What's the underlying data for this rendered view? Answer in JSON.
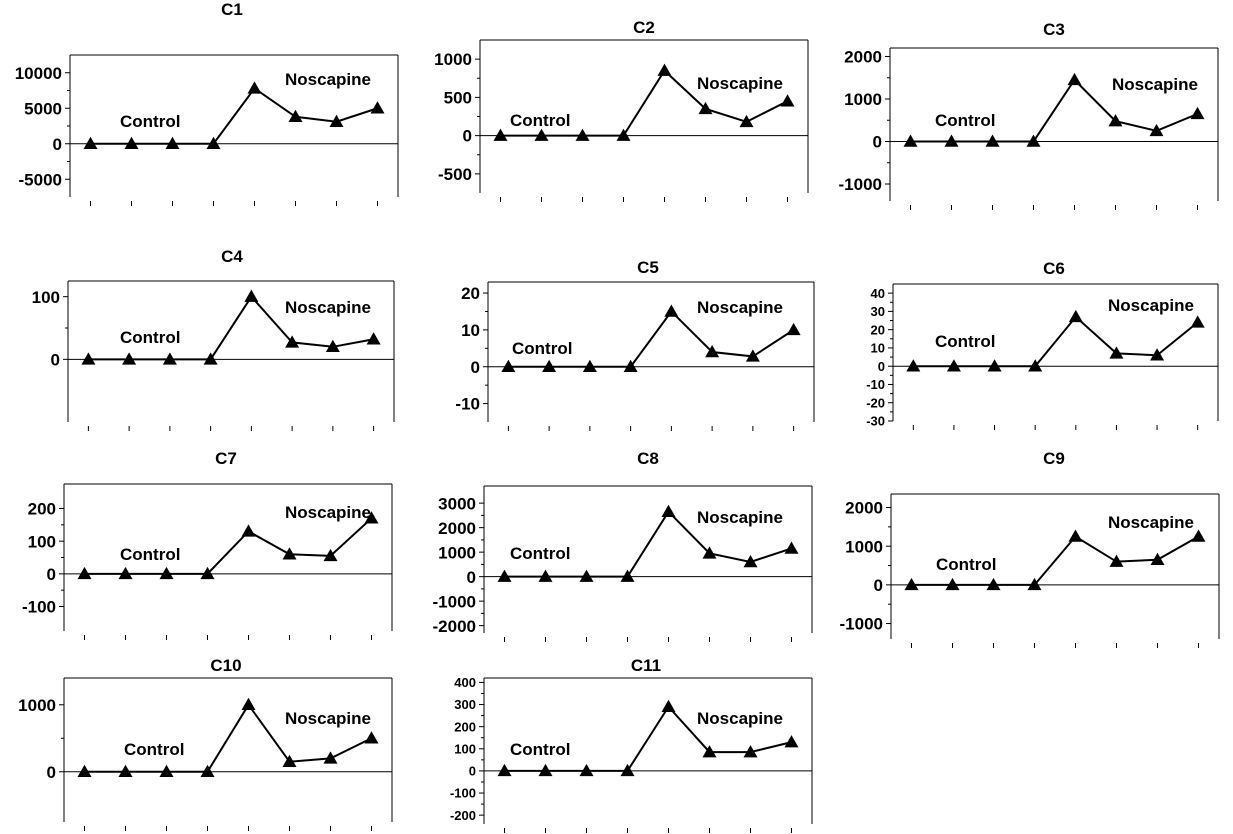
{
  "chart_data": [
    {
      "type": "line",
      "title": "C1",
      "yticks": [
        -5000,
        0,
        5000,
        10000
      ],
      "ylim": [
        -7500,
        12500
      ],
      "series": [
        {
          "values": [
            0,
            0,
            0,
            0,
            7800,
            3800,
            3100,
            5000
          ]
        }
      ],
      "annotations": [
        "Control",
        "Noscapine"
      ]
    },
    {
      "type": "line",
      "title": "C2",
      "yticks": [
        -500,
        0,
        500,
        1000
      ],
      "ylim": [
        -750,
        1250
      ],
      "series": [
        {
          "values": [
            0,
            0,
            0,
            0,
            850,
            350,
            180,
            450
          ]
        }
      ],
      "annotations": [
        "Control",
        "Noscapine"
      ]
    },
    {
      "type": "line",
      "title": "C3",
      "yticks": [
        -1000,
        0,
        1000,
        2000
      ],
      "ylim": [
        -1400,
        2200
      ],
      "series": [
        {
          "values": [
            0,
            0,
            0,
            0,
            1450,
            480,
            250,
            650
          ]
        }
      ],
      "annotations": [
        "Control",
        "Noscapine"
      ]
    },
    {
      "type": "line",
      "title": "C4",
      "yticks": [
        0,
        100
      ],
      "ylim": [
        -100,
        125
      ],
      "series": [
        {
          "values": [
            0,
            0,
            0,
            0,
            100,
            27,
            20,
            32
          ]
        }
      ],
      "annotations": [
        "Control",
        "Noscapine"
      ]
    },
    {
      "type": "line",
      "title": "C5",
      "yticks": [
        -10,
        0,
        10,
        20
      ],
      "ylim": [
        -15,
        23
      ],
      "series": [
        {
          "values": [
            0,
            0,
            0,
            0,
            15,
            4,
            2.8,
            10
          ]
        }
      ],
      "annotations": [
        "Control",
        "Noscapine"
      ]
    },
    {
      "type": "line",
      "title": "C6",
      "yticks": [
        -30,
        -20,
        -10,
        0,
        10,
        20,
        30,
        40
      ],
      "ylim": [
        -30,
        45
      ],
      "series": [
        {
          "values": [
            0,
            0,
            0,
            0,
            27,
            7,
            6,
            24
          ]
        }
      ],
      "annotations": [
        "Control",
        "Noscapine"
      ]
    },
    {
      "type": "line",
      "title": "C7",
      "yticks": [
        -100,
        0,
        100,
        200
      ],
      "ylim": [
        -175,
        275
      ],
      "series": [
        {
          "values": [
            0,
            0,
            0,
            0,
            130,
            60,
            55,
            170
          ]
        }
      ],
      "annotations": [
        "Control",
        "Noscapine"
      ]
    },
    {
      "type": "line",
      "title": "C8",
      "yticks": [
        -2000,
        -1000,
        0,
        1000,
        2000,
        3000
      ],
      "ylim": [
        -2300,
        3700
      ],
      "series": [
        {
          "values": [
            0,
            0,
            0,
            0,
            2650,
            950,
            600,
            1150
          ]
        }
      ],
      "annotations": [
        "Control",
        "Noscapine"
      ]
    },
    {
      "type": "line",
      "title": "C9",
      "yticks": [
        -1000,
        0,
        1000,
        2000
      ],
      "ylim": [
        -1400,
        2350
      ],
      "series": [
        {
          "values": [
            0,
            0,
            0,
            0,
            1250,
            600,
            650,
            1250
          ]
        }
      ],
      "annotations": [
        "Control",
        "Noscapine"
      ]
    },
    {
      "type": "line",
      "title": "C10",
      "yticks": [
        0,
        1000
      ],
      "ylim": [
        -750,
        1400
      ],
      "series": [
        {
          "values": [
            0,
            0,
            0,
            0,
            1000,
            150,
            200,
            500
          ]
        }
      ],
      "annotations": [
        "Control",
        "Noscapine"
      ]
    },
    {
      "type": "line",
      "title": "C11",
      "yticks": [
        -200,
        -100,
        0,
        100,
        200,
        300,
        400
      ],
      "ylim": [
        -240,
        420
      ],
      "series": [
        {
          "values": [
            0,
            0,
            0,
            0,
            290,
            85,
            85,
            130
          ]
        }
      ],
      "annotations": [
        "Control",
        "Noscapine"
      ]
    }
  ]
}
